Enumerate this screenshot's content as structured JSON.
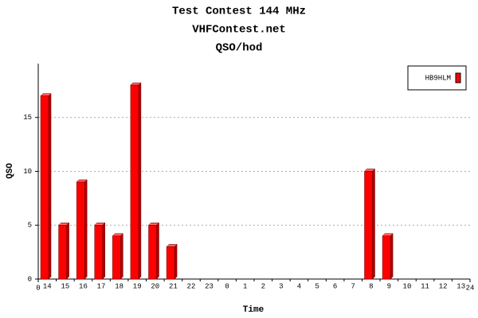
{
  "chart_data": {
    "type": "bar",
    "title": "Test Contest 144 MHz",
    "subtitle": "VHFContest.net",
    "subtitle2": "QSO/hod",
    "x_label": "Time",
    "y_label": "QSO",
    "categories": [
      "14",
      "15",
      "16",
      "17",
      "18",
      "19",
      "20",
      "21",
      "22",
      "23",
      "0",
      "1",
      "2",
      "3",
      "4",
      "5",
      "6",
      "7",
      "8",
      "9",
      "10",
      "11",
      "12",
      "13"
    ],
    "series": [
      {
        "name": "HB9HLM",
        "color": "#ff0000",
        "values": [
          17,
          5,
          9,
          5,
          4,
          18,
          5,
          3,
          0,
          0,
          0,
          0,
          0,
          0,
          0,
          0,
          0,
          0,
          10,
          4,
          0,
          0,
          0,
          0
        ]
      }
    ],
    "xlim": [
      0,
      24
    ],
    "xticks": [
      0,
      24
    ],
    "ylim": [
      0,
      20
    ],
    "yticks": [
      0,
      5,
      10,
      15
    ],
    "grid": true,
    "legend": "top-right"
  }
}
